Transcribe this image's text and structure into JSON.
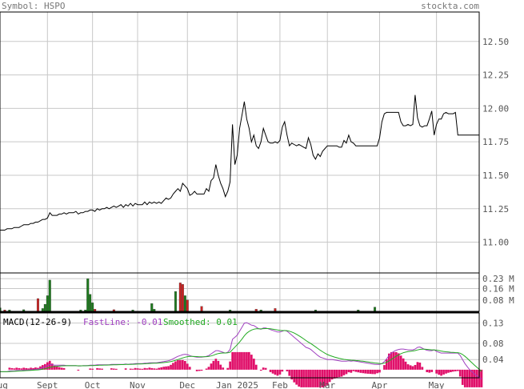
{
  "header": {
    "symbol_label": "Symbol: HSPO",
    "site": "stockta.com"
  },
  "colors": {
    "price_line": "#000000",
    "grid": "#c8c8c8",
    "volume_up": "#1f7a1f",
    "volume_down": "#cc2222",
    "macd_fast": "#a040c0",
    "macd_smooth": "#22aa22",
    "macd_hist": "#e0106a"
  },
  "chart_data": [
    {
      "type": "line",
      "name": "price",
      "y_ticks": [
        "12.50",
        "12.25",
        "12.00",
        "11.75",
        "11.50",
        "11.25",
        "11.00"
      ],
      "ylim": [
        10.77,
        12.72
      ],
      "x_labels": [
        "Aug",
        "Sept",
        "Oct",
        "Nov",
        "Dec",
        "Jan 2025",
        "Feb",
        "Mar",
        "Apr",
        "May"
      ],
      "x_label_index": [
        0,
        20,
        39,
        58,
        79,
        100,
        118,
        138,
        160,
        184
      ],
      "values": [
        11.09,
        11.09,
        11.09,
        11.1,
        11.1,
        11.1,
        11.11,
        11.11,
        11.11,
        11.12,
        11.13,
        11.13,
        11.13,
        11.14,
        11.14,
        11.15,
        11.15,
        11.16,
        11.17,
        11.17,
        11.18,
        11.22,
        11.2,
        11.2,
        11.2,
        11.21,
        11.21,
        11.22,
        11.21,
        11.22,
        11.22,
        11.22,
        11.23,
        11.21,
        11.22,
        11.22,
        11.23,
        11.23,
        11.24,
        11.24,
        11.23,
        11.25,
        11.24,
        11.25,
        11.25,
        11.26,
        11.25,
        11.26,
        11.27,
        11.26,
        11.27,
        11.28,
        11.26,
        11.28,
        11.27,
        11.29,
        11.27,
        11.29,
        11.28,
        11.28,
        11.28,
        11.3,
        11.28,
        11.3,
        11.29,
        11.3,
        11.29,
        11.3,
        11.29,
        11.31,
        11.33,
        11.32,
        11.33,
        11.36,
        11.38,
        11.4,
        11.38,
        11.44,
        11.42,
        11.4,
        11.35,
        11.36,
        11.38,
        11.36,
        11.36,
        11.36,
        11.36,
        11.4,
        11.38,
        11.46,
        11.48,
        11.58,
        11.5,
        11.44,
        11.4,
        11.34,
        11.38,
        11.45,
        11.88,
        11.58,
        11.65,
        11.85,
        11.95,
        12.05,
        11.92,
        11.85,
        11.75,
        11.8,
        11.72,
        11.7,
        11.75,
        11.85,
        11.8,
        11.75,
        11.74,
        11.74,
        11.75,
        11.74,
        11.76,
        11.86,
        11.9,
        11.8,
        11.72,
        11.74,
        11.73,
        11.72,
        11.73,
        11.72,
        11.71,
        11.7,
        11.78,
        11.73,
        11.65,
        11.62,
        11.66,
        11.64,
        11.68,
        11.7,
        11.72,
        11.72,
        11.72,
        11.72,
        11.72,
        11.71,
        11.71,
        11.76,
        11.74,
        11.8,
        11.75,
        11.74,
        11.72,
        11.72,
        11.72,
        11.72,
        11.72,
        11.72,
        11.72,
        11.72,
        11.72,
        11.72,
        11.78,
        11.9,
        11.96,
        11.97,
        11.97,
        11.97,
        11.97,
        11.97,
        11.97,
        11.9,
        11.87,
        11.87,
        11.88,
        11.87,
        11.88,
        12.1,
        11.93,
        11.87,
        11.86,
        11.87,
        11.87,
        11.92,
        11.98,
        11.8,
        11.88,
        11.92,
        11.92,
        11.96,
        11.97,
        11.96,
        11.96,
        11.96,
        11.97,
        11.8,
        11.8,
        11.8,
        11.8,
        11.8,
        11.8,
        11.8,
        11.8,
        11.8,
        11.8
      ]
    },
    {
      "type": "bar",
      "name": "volume",
      "y_ticks": [
        "0.23 M",
        "0.16 M",
        "0.08 M"
      ],
      "ylim": [
        0,
        0.27
      ],
      "bars": [
        {
          "i": 0,
          "v": 0.025,
          "c": "up"
        },
        {
          "i": 2,
          "v": 0.01,
          "c": "down"
        },
        {
          "i": 4,
          "v": 0.01,
          "c": "up"
        },
        {
          "i": 10,
          "v": 0.012,
          "c": "up"
        },
        {
          "i": 16,
          "v": 0.09,
          "c": "down"
        },
        {
          "i": 18,
          "v": 0.02,
          "c": "up"
        },
        {
          "i": 19,
          "v": 0.05,
          "c": "up"
        },
        {
          "i": 20,
          "v": 0.11,
          "c": "up"
        },
        {
          "i": 21,
          "v": 0.22,
          "c": "up"
        },
        {
          "i": 34,
          "v": 0.01,
          "c": "up"
        },
        {
          "i": 36,
          "v": 0.01,
          "c": "up"
        },
        {
          "i": 37,
          "v": 0.23,
          "c": "up"
        },
        {
          "i": 38,
          "v": 0.12,
          "c": "up"
        },
        {
          "i": 39,
          "v": 0.06,
          "c": "up"
        },
        {
          "i": 40,
          "v": 0.015,
          "c": "down"
        },
        {
          "i": 48,
          "v": 0.012,
          "c": "down"
        },
        {
          "i": 56,
          "v": 0.01,
          "c": "up"
        },
        {
          "i": 64,
          "v": 0.055,
          "c": "up"
        },
        {
          "i": 65,
          "v": 0.015,
          "c": "up"
        },
        {
          "i": 74,
          "v": 0.14,
          "c": "up"
        },
        {
          "i": 76,
          "v": 0.2,
          "c": "down"
        },
        {
          "i": 77,
          "v": 0.19,
          "c": "down"
        },
        {
          "i": 78,
          "v": 0.11,
          "c": "up"
        },
        {
          "i": 79,
          "v": 0.08,
          "c": "down"
        },
        {
          "i": 85,
          "v": 0.035,
          "c": "down"
        },
        {
          "i": 97,
          "v": 0.01,
          "c": "up"
        },
        {
          "i": 108,
          "v": 0.015,
          "c": "down"
        },
        {
          "i": 110,
          "v": 0.01,
          "c": "up"
        },
        {
          "i": 116,
          "v": 0.02,
          "c": "down"
        },
        {
          "i": 133,
          "v": 0.01,
          "c": "up"
        },
        {
          "i": 151,
          "v": 0.01,
          "c": "up"
        },
        {
          "i": 158,
          "v": 0.03,
          "c": "up"
        }
      ]
    },
    {
      "type": "line",
      "name": "MACD",
      "title": "MACD(12-26-9)",
      "fast_label": "FastLine: -0.01",
      "smooth_label": "Smoothed: 0.01",
      "y_ticks": [
        "0.13",
        "0.08",
        "0.04"
      ],
      "ylim": [
        -0.005,
        0.155
      ],
      "fast": [
        0.01,
        0.01,
        0.01,
        0.01,
        0.012,
        0.012,
        0.012,
        0.013,
        0.013,
        0.013,
        0.014,
        0.014,
        0.014,
        0.015,
        0.015,
        0.016,
        0.016,
        0.018,
        0.02,
        0.022,
        0.025,
        0.028,
        0.027,
        0.026,
        0.026,
        0.026,
        0.026,
        0.026,
        0.025,
        0.025,
        0.025,
        0.025,
        0.025,
        0.024,
        0.024,
        0.025,
        0.025,
        0.025,
        0.026,
        0.026,
        0.026,
        0.027,
        0.027,
        0.027,
        0.027,
        0.027,
        0.027,
        0.028,
        0.028,
        0.028,
        0.028,
        0.028,
        0.028,
        0.029,
        0.028,
        0.029,
        0.029,
        0.03,
        0.03,
        0.03,
        0.03,
        0.031,
        0.031,
        0.032,
        0.032,
        0.032,
        0.032,
        0.033,
        0.034,
        0.035,
        0.036,
        0.037,
        0.039,
        0.042,
        0.045,
        0.048,
        0.05,
        0.052,
        0.053,
        0.052,
        0.05,
        0.048,
        0.047,
        0.046,
        0.046,
        0.046,
        0.047,
        0.048,
        0.05,
        0.054,
        0.058,
        0.062,
        0.062,
        0.06,
        0.058,
        0.056,
        0.058,
        0.065,
        0.09,
        0.095,
        0.1,
        0.11,
        0.12,
        0.13,
        0.131,
        0.128,
        0.125,
        0.124,
        0.12,
        0.116,
        0.115,
        0.118,
        0.118,
        0.116,
        0.114,
        0.112,
        0.11,
        0.108,
        0.108,
        0.11,
        0.112,
        0.11,
        0.105,
        0.1,
        0.095,
        0.09,
        0.085,
        0.08,
        0.075,
        0.07,
        0.068,
        0.065,
        0.06,
        0.055,
        0.05,
        0.046,
        0.044,
        0.042,
        0.04,
        0.04,
        0.04,
        0.039,
        0.038,
        0.037,
        0.036,
        0.036,
        0.036,
        0.037,
        0.036,
        0.037,
        0.036,
        0.035,
        0.034,
        0.033,
        0.032,
        0.031,
        0.03,
        0.029,
        0.028,
        0.028,
        0.028,
        0.03,
        0.035,
        0.042,
        0.05,
        0.056,
        0.06,
        0.063,
        0.065,
        0.066,
        0.066,
        0.065,
        0.064,
        0.064,
        0.064,
        0.066,
        0.07,
        0.071,
        0.068,
        0.065,
        0.063,
        0.062,
        0.062,
        0.064,
        0.06,
        0.058,
        0.056,
        0.056,
        0.056,
        0.056,
        0.056,
        0.056,
        0.056,
        0.056,
        0.05,
        0.04,
        0.03,
        0.022,
        0.015,
        0.01,
        0.004,
        0.0,
        -0.004,
        -0.008
      ]
    }
  ]
}
